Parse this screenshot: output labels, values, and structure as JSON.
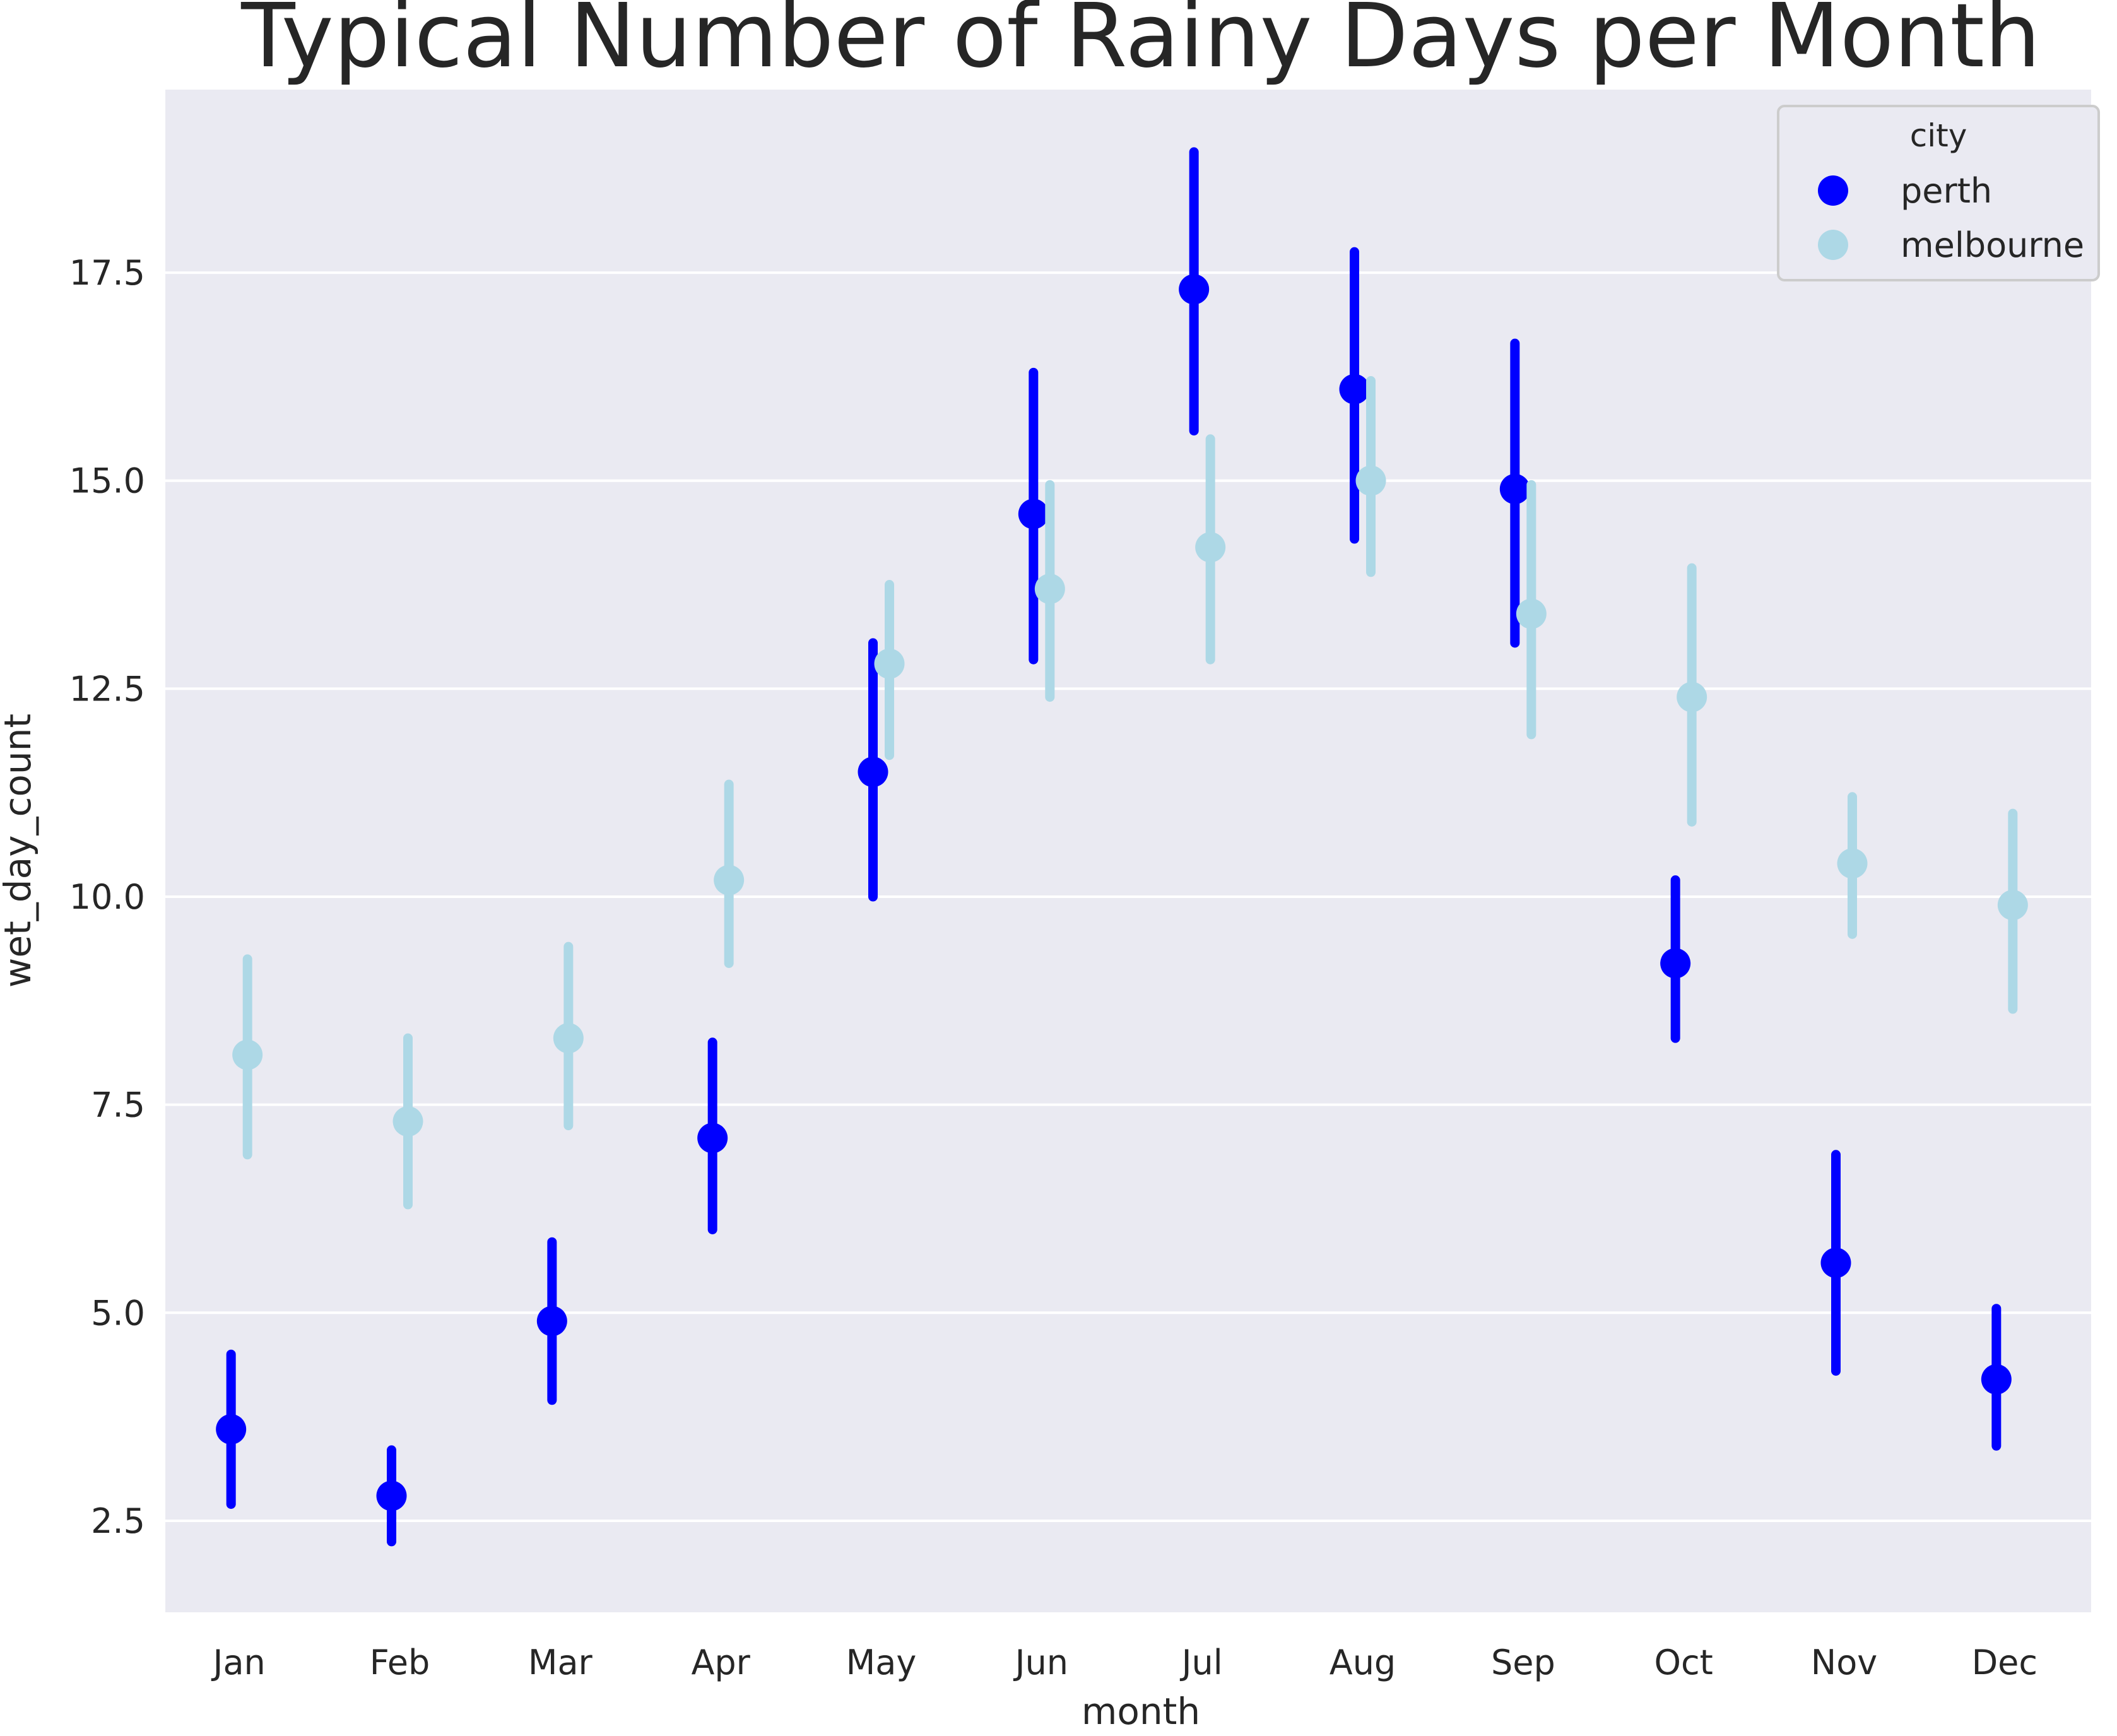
{
  "chart_data": {
    "type": "scatter",
    "variant": "point-with-error-bars",
    "title": "Typical Number of Rainy Days per Month",
    "xlabel": "month",
    "ylabel": "wet_day_count",
    "categories": [
      "Jan",
      "Feb",
      "Mar",
      "Apr",
      "May",
      "Jun",
      "Jul",
      "Aug",
      "Sep",
      "Oct",
      "Nov",
      "Dec"
    ],
    "ylim": [
      1.4,
      19.7
    ],
    "yticks": [
      2.5,
      5.0,
      7.5,
      10.0,
      12.5,
      15.0,
      17.5
    ],
    "ytick_labels": [
      "2.5",
      "5.0",
      "7.5",
      "10.0",
      "12.5",
      "15.0",
      "17.5"
    ],
    "grid": true,
    "legend": {
      "title": "city",
      "position": "top-right"
    },
    "series": [
      {
        "name": "perth",
        "color": "#0000ff",
        "values": [
          3.6,
          2.8,
          4.9,
          7.1,
          11.5,
          14.6,
          17.3,
          16.1,
          14.9,
          9.2,
          5.6,
          4.2
        ],
        "lower": [
          2.7,
          2.25,
          3.95,
          6.0,
          10.0,
          12.85,
          15.6,
          14.3,
          13.05,
          8.3,
          4.3,
          3.4
        ],
        "upper": [
          4.5,
          3.35,
          5.85,
          8.25,
          13.05,
          16.3,
          18.95,
          17.75,
          16.65,
          10.2,
          6.9,
          5.05
        ]
      },
      {
        "name": "melbourne",
        "color": "#add8e6",
        "values": [
          8.1,
          7.3,
          8.3,
          10.2,
          12.8,
          13.7,
          14.2,
          15.0,
          13.4,
          12.4,
          10.4,
          9.9
        ],
        "lower": [
          6.9,
          6.3,
          7.25,
          9.2,
          11.7,
          12.4,
          12.85,
          13.9,
          11.95,
          10.9,
          9.55,
          8.65
        ],
        "upper": [
          9.25,
          8.3,
          9.4,
          11.35,
          13.75,
          14.95,
          15.5,
          16.2,
          14.95,
          13.95,
          11.2,
          11.0
        ]
      }
    ]
  }
}
